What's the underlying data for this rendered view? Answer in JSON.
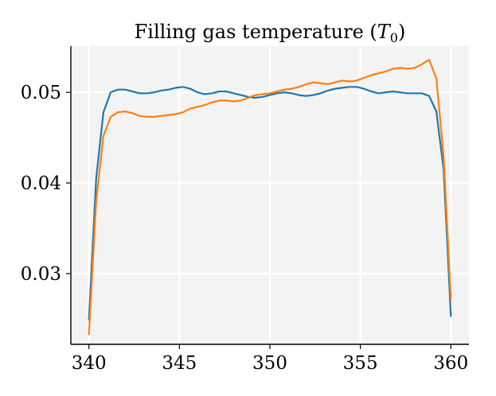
{
  "chart_data": {
    "type": "line",
    "title": "Filling gas temperature (",
    "title_symbol": "T",
    "title_subscript": "0",
    "title_close": ")",
    "xlabel": "",
    "ylabel": "",
    "xlim": [
      339,
      361
    ],
    "ylim": [
      0.0222,
      0.0551
    ],
    "xticks": [
      340,
      345,
      350,
      355,
      360
    ],
    "xtick_labels": [
      "340",
      "345",
      "350",
      "355",
      "360"
    ],
    "yticks": [
      0.03,
      0.04,
      0.05
    ],
    "ytick_labels": [
      "0.03",
      "0.04",
      "0.05"
    ],
    "grid": true,
    "background": "#f3f3f3",
    "series": [
      {
        "color": "#1f77b4",
        "x": [
          340.0,
          340.4,
          340.8,
          341.2,
          341.6,
          342.0,
          342.4,
          342.8,
          343.2,
          343.6,
          344.0,
          344.4,
          344.8,
          345.2,
          345.6,
          346.0,
          346.4,
          346.8,
          347.2,
          347.6,
          348.0,
          348.4,
          348.8,
          349.2,
          349.6,
          350.0,
          350.4,
          350.8,
          351.2,
          351.6,
          352.0,
          352.4,
          352.8,
          353.2,
          353.6,
          354.0,
          354.4,
          354.8,
          355.2,
          355.6,
          356.0,
          356.4,
          356.8,
          357.2,
          357.6,
          358.0,
          358.4,
          358.8,
          359.2,
          359.6,
          360.0
        ],
        "y": [
          0.0249,
          0.0405,
          0.0478,
          0.05,
          0.0503,
          0.0503,
          0.0501,
          0.0499,
          0.0499,
          0.05,
          0.0502,
          0.0503,
          0.0505,
          0.0506,
          0.0504,
          0.05,
          0.0498,
          0.0499,
          0.0501,
          0.0501,
          0.0499,
          0.0497,
          0.0495,
          0.0494,
          0.0495,
          0.0497,
          0.0499,
          0.05,
          0.0499,
          0.0497,
          0.0496,
          0.0497,
          0.0499,
          0.0502,
          0.0504,
          0.0505,
          0.0506,
          0.0506,
          0.0504,
          0.0501,
          0.0499,
          0.05,
          0.0501,
          0.05,
          0.0499,
          0.0499,
          0.0499,
          0.0496,
          0.0479,
          0.0415,
          0.0253
        ]
      },
      {
        "color": "#ff7f0e",
        "x": [
          340.0,
          340.4,
          340.8,
          341.2,
          341.6,
          342.0,
          342.4,
          342.8,
          343.2,
          343.6,
          344.0,
          344.4,
          344.8,
          345.2,
          345.6,
          346.0,
          346.4,
          346.8,
          347.2,
          347.6,
          348.0,
          348.4,
          348.8,
          349.2,
          349.6,
          350.0,
          350.4,
          350.8,
          351.2,
          351.6,
          352.0,
          352.4,
          352.8,
          353.2,
          353.6,
          354.0,
          354.4,
          354.8,
          355.2,
          355.6,
          356.0,
          356.4,
          356.8,
          357.2,
          357.6,
          358.0,
          358.4,
          358.8,
          359.2,
          359.6,
          360.0
        ],
        "y": [
          0.0233,
          0.038,
          0.0452,
          0.0473,
          0.0478,
          0.0479,
          0.0477,
          0.0474,
          0.0473,
          0.0473,
          0.0474,
          0.0475,
          0.0476,
          0.0478,
          0.0482,
          0.0484,
          0.0486,
          0.0489,
          0.0491,
          0.0491,
          0.049,
          0.0491,
          0.0494,
          0.0497,
          0.0498,
          0.0499,
          0.0501,
          0.0503,
          0.0504,
          0.0506,
          0.0509,
          0.0511,
          0.051,
          0.0509,
          0.0511,
          0.0513,
          0.0512,
          0.0513,
          0.0516,
          0.0519,
          0.0521,
          0.0523,
          0.0526,
          0.0527,
          0.0526,
          0.0527,
          0.0531,
          0.0536,
          0.0515,
          0.043,
          0.0272
        ]
      }
    ]
  }
}
